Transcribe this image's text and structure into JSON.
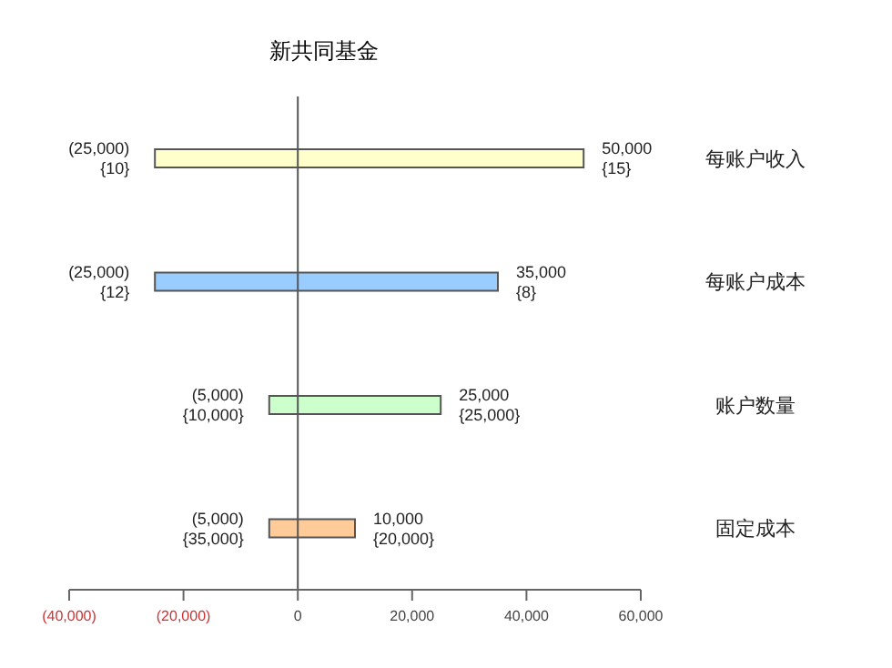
{
  "chart_data": {
    "type": "bar",
    "orientation": "horizontal",
    "title": "新共同基金",
    "categories": [
      "每账户收入",
      "每账户成本",
      "账户数量",
      "固定成本"
    ],
    "base": [
      -25000,
      -25000,
      -5000,
      -5000
    ],
    "values": [
      75000,
      60000,
      30000,
      15000
    ],
    "colors": [
      "#ffffcc",
      "#99ccff",
      "#ccffcc",
      "#ffcc99"
    ],
    "annotations": [
      {
        "text": "50,000\n{15}",
        "x": 50000,
        "y": "每账户收入"
      },
      {
        "text": "35,000\n{8}",
        "x": 35000,
        "y": "每账户成本"
      },
      {
        "text": "25,000\n{25,000}",
        "x": 25000,
        "y": "账户数量"
      },
      {
        "text": "10,000\n{20,000}",
        "x": 10000,
        "y": "固定成本"
      },
      {
        "text": "(25,000)\n{10}",
        "x": -25000,
        "y": "每账户收入"
      },
      {
        "text": "(25,000)\n{12}",
        "x": -25000,
        "y": "每账户成本"
      },
      {
        "text": "(5,000)\n{10,000}",
        "x": -5000,
        "y": "账户数量"
      },
      {
        "text": "(5,000)\n{35,000}",
        "x": -5000,
        "y": "固定成本"
      }
    ],
    "xlim": [
      -40000,
      60000
    ],
    "xticks": [
      {
        "value": -40000,
        "label": "(40,000)"
      },
      {
        "value": -20000,
        "label": "(20,000)"
      },
      0,
      {
        "value": 20000,
        "label": "20,000"
      },
      {
        "value": 40000,
        "label": "40,000"
      },
      {
        "value": 60000,
        "label": "60,000"
      }
    ],
    "ref_lines": [
      {
        "axis": "x",
        "value": 0,
        "color": "#555555"
      }
    ],
    "grid": false,
    "legend": false
  }
}
